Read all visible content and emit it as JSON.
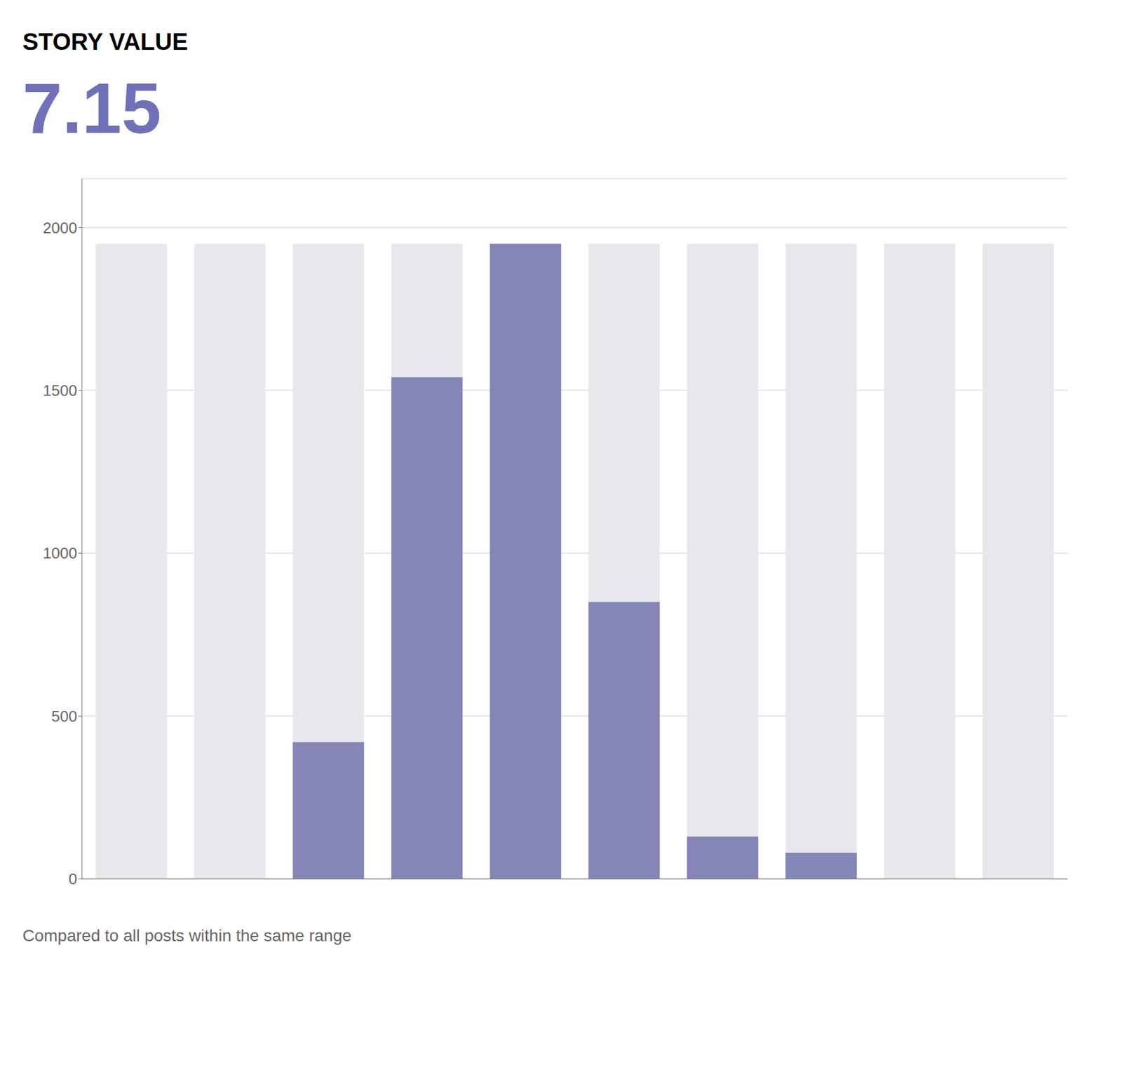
{
  "chart_data": {
    "type": "bar",
    "title": "STORY VALUE",
    "subtitle": "Compared to all posts within the same range",
    "annotations": [
      {
        "text": "7.15",
        "color": "#7070B8"
      }
    ],
    "categories": [
      null,
      null,
      null,
      null,
      null,
      null,
      null,
      null,
      null,
      null
    ],
    "series": [
      {
        "color": "#e8e8ec",
        "values": [
          1950,
          1950,
          1950,
          1950,
          1950,
          1950,
          1950,
          1950,
          1950,
          1950
        ]
      },
      {
        "color": "#8585B8",
        "values": [
          0,
          0,
          420,
          1540,
          1950,
          850,
          130,
          80,
          0,
          0
        ]
      }
    ],
    "ylim": [
      0,
      2150
    ],
    "yticks": [
      0,
      500,
      1000,
      1500,
      2000
    ],
    "grid": true,
    "tick_labels": "y"
  }
}
